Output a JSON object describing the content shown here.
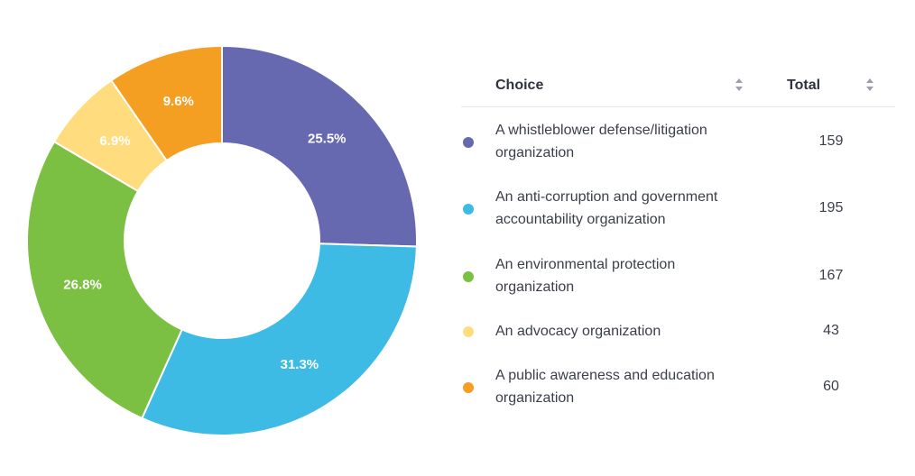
{
  "chart_data": {
    "type": "pie",
    "variant": "donut",
    "categories": [
      "A whistleblower defense/litigation organization",
      "An anti-corruption and government accountability organization",
      "An environmental protection organization",
      "An advocacy organization",
      "A public awareness and education organization"
    ],
    "values": [
      159,
      195,
      167,
      43,
      60
    ],
    "percent_labels": [
      "25.5%",
      "31.3%",
      "26.8%",
      "6.9%",
      "9.6%"
    ],
    "colors": [
      "#6669b0",
      "#3dbbe4",
      "#7bc043",
      "#ffdd7f",
      "#f59f22"
    ],
    "legend_placement": "right"
  },
  "legend": {
    "header_choice": "Choice",
    "header_total": "Total",
    "rows": [
      {
        "label": "A whistleblower defense/litigation organization",
        "total": "159"
      },
      {
        "label": "An anti-corruption and government accountability organization",
        "total": "195"
      },
      {
        "label": "An environmental protection organization",
        "total": "167"
      },
      {
        "label": "An advocacy organization",
        "total": "43"
      },
      {
        "label": "A public awareness and education organization",
        "total": "60"
      }
    ]
  }
}
